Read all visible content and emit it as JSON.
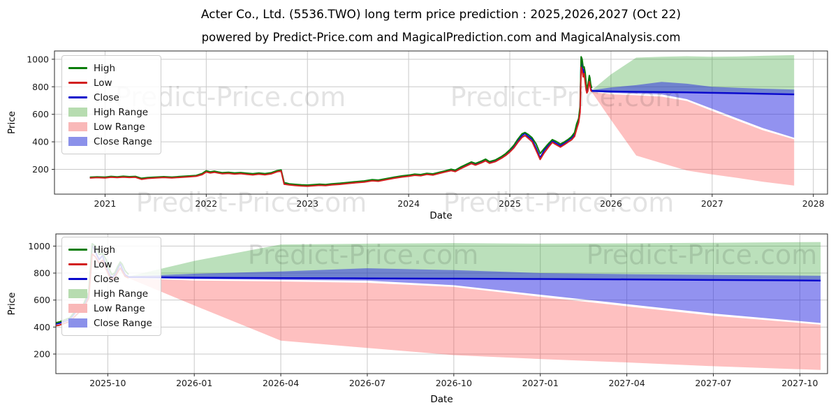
{
  "title": "Acter Co., Ltd. (5536.TWO) long term price prediction : 2025,2026,2027 (Oct 22)",
  "subtitle": "powered by Predict-Price.com and MagicalPrediction.com and MagicalAnalysis.com",
  "watermark_text": "Predict-Price.com",
  "colors": {
    "high_line": "#0a7d0a",
    "low_line": "#d21f1f",
    "close_line": "#0909cc",
    "high_fill": "rgba(44,160,44,0.32)",
    "low_fill": "rgba(253,70,70,0.34)",
    "close_fill": "rgba(38,38,226,0.50)",
    "grid": "#c9c9c9",
    "spine": "#2a2a2a",
    "tick_label": "#1a1a1a",
    "watermark": "rgba(0,0,0,0.11)"
  },
  "legend": [
    {
      "label": "High",
      "color": "#0a7d0a",
      "type": "line"
    },
    {
      "label": "Low",
      "color": "#d21f1f",
      "type": "line"
    },
    {
      "label": "Close",
      "color": "#0909cc",
      "type": "line"
    },
    {
      "label": "High Range",
      "color": "#b7dcb0",
      "type": "patch"
    },
    {
      "label": "Low Range",
      "color": "#f9b8b8",
      "type": "patch"
    },
    {
      "label": "Close Range",
      "color": "#8b91ea",
      "type": "patch"
    }
  ],
  "chart_data": [
    {
      "type": "line",
      "description": "Full history 2020-2025 plus 2-year prediction ranges to Oct 2027",
      "xlabel": "Date",
      "ylabel": "Price",
      "xlim": [
        2020.5,
        2028.14
      ],
      "ylim": [
        20,
        1060
      ],
      "x_tick_values": [
        2021,
        2022,
        2023,
        2024,
        2025,
        2026,
        2027,
        2028
      ],
      "x_tick_labels": [
        "2021",
        "2022",
        "2023",
        "2024",
        "2025",
        "2026",
        "2027",
        "2028"
      ],
      "y_tick_values": [
        200,
        400,
        600,
        800,
        1000
      ],
      "y_tick_labels": [
        "200",
        "400",
        "600",
        "800",
        "1000"
      ],
      "grid": true,
      "legend_position": "upper-left"
    },
    {
      "type": "line",
      "description": "Zoom on prediction window Oct 2025 - Oct 2027",
      "xlabel": "Date",
      "ylabel": "Price",
      "xlim": [
        2025.6,
        2027.83
      ],
      "ylim": [
        55,
        1090
      ],
      "x_tick_values": [
        2025.75,
        2026.0,
        2026.25,
        2026.5,
        2026.75,
        2027.0,
        2027.25,
        2027.5,
        2027.75
      ],
      "x_tick_labels": [
        "2025-10",
        "2026-01",
        "2026-04",
        "2026-07",
        "2026-10",
        "2027-01",
        "2027-04",
        "2027-07",
        "2027-10"
      ],
      "y_tick_values": [
        200,
        400,
        600,
        800,
        1000
      ],
      "y_tick_labels": [
        "200",
        "400",
        "600",
        "800",
        "1000"
      ],
      "grid": true,
      "legend_position": "upper-left"
    }
  ],
  "history": {
    "x_unit": "decimal_year",
    "x": [
      2020.85,
      2020.92,
      2021.0,
      2021.06,
      2021.12,
      2021.18,
      2021.24,
      2021.3,
      2021.36,
      2021.42,
      2021.5,
      2021.58,
      2021.66,
      2021.74,
      2021.82,
      2021.9,
      2021.96,
      2022.0,
      2022.04,
      2022.08,
      2022.12,
      2022.16,
      2022.22,
      2022.28,
      2022.34,
      2022.4,
      2022.46,
      2022.52,
      2022.58,
      2022.64,
      2022.7,
      2022.74,
      2022.77,
      2022.82,
      2022.88,
      2022.94,
      2023.0,
      2023.06,
      2023.12,
      2023.18,
      2023.24,
      2023.32,
      2023.4,
      2023.48,
      2023.56,
      2023.64,
      2023.7,
      2023.78,
      2023.86,
      2023.94,
      2024.0,
      2024.06,
      2024.12,
      2024.18,
      2024.24,
      2024.3,
      2024.36,
      2024.42,
      2024.46,
      2024.52,
      2024.58,
      2024.62,
      2024.66,
      2024.72,
      2024.76,
      2024.8,
      2024.86,
      2024.92,
      2024.96,
      2025.0,
      2025.04,
      2025.08,
      2025.12,
      2025.15,
      2025.18,
      2025.22,
      2025.26,
      2025.3,
      2025.34,
      2025.38,
      2025.42,
      2025.46,
      2025.5,
      2025.54,
      2025.58,
      2025.61,
      2025.64,
      2025.66,
      2025.68,
      2025.695,
      2025.705,
      2025.715,
      2025.725,
      2025.735,
      2025.745,
      2025.755,
      2025.762,
      2025.77,
      2025.778,
      2025.786,
      2025.792,
      2025.8,
      2025.81
    ],
    "high": [
      143,
      146,
      144,
      149,
      146,
      150,
      147,
      149,
      135,
      140,
      144,
      147,
      144,
      148,
      152,
      156,
      170,
      190,
      182,
      187,
      181,
      176,
      179,
      174,
      177,
      172,
      168,
      173,
      169,
      175,
      191,
      196,
      104,
      95,
      91,
      88,
      86,
      89,
      92,
      90,
      95,
      99,
      105,
      111,
      116,
      125,
      122,
      133,
      144,
      153,
      158,
      165,
      162,
      171,
      167,
      178,
      189,
      201,
      194,
      219,
      240,
      254,
      243,
      260,
      274,
      256,
      269,
      294,
      315,
      342,
      375,
      420,
      458,
      468,
      455,
      430,
      385,
      315,
      352,
      386,
      416,
      402,
      384,
      400,
      420,
      438,
      468,
      530,
      570,
      660,
      1018,
      1000,
      938,
      945,
      902,
      824,
      788,
      800,
      846,
      882,
      864,
      818,
      790
    ],
    "low": [
      137,
      140,
      138,
      143,
      140,
      144,
      141,
      143,
      128,
      134,
      138,
      141,
      138,
      142,
      146,
      150,
      162,
      181,
      174,
      179,
      173,
      168,
      171,
      166,
      169,
      164,
      160,
      165,
      161,
      167,
      183,
      188,
      92,
      87,
      83,
      80,
      78,
      81,
      84,
      82,
      87,
      91,
      97,
      103,
      108,
      117,
      114,
      125,
      136,
      145,
      150,
      157,
      154,
      163,
      159,
      170,
      181,
      191,
      184,
      207,
      228,
      242,
      231,
      248,
      262,
      244,
      257,
      282,
      301,
      326,
      356,
      396,
      432,
      446,
      428,
      402,
      338,
      272,
      320,
      360,
      396,
      378,
      362,
      380,
      400,
      414,
      440,
      492,
      540,
      615,
      942,
      918,
      872,
      896,
      830,
      776,
      755,
      766,
      805,
      838,
      812,
      776,
      764
    ],
    "close": [
      140,
      143,
      141,
      146,
      143,
      147,
      144,
      146,
      132,
      137,
      141,
      144,
      141,
      145,
      149,
      153,
      166,
      186,
      178,
      183,
      177,
      172,
      175,
      170,
      173,
      168,
      164,
      169,
      165,
      171,
      187,
      192,
      98,
      91,
      87,
      84,
      82,
      85,
      88,
      86,
      91,
      95,
      101,
      107,
      112,
      121,
      118,
      129,
      140,
      149,
      154,
      161,
      158,
      167,
      163,
      174,
      185,
      196,
      189,
      213,
      234,
      248,
      237,
      254,
      268,
      250,
      263,
      288,
      308,
      334,
      365,
      408,
      444,
      462,
      440,
      417,
      355,
      285,
      338,
      374,
      407,
      390,
      372,
      391,
      412,
      428,
      455,
      520,
      556,
      640,
      1008,
      952,
      900,
      930,
      852,
      790,
      764,
      788,
      826,
      870,
      830,
      788,
      772
    ]
  },
  "forecast": {
    "x_unit": "decimal_year",
    "x": [
      2025.81,
      2026.0,
      2026.25,
      2026.5,
      2026.75,
      2027.0,
      2027.25,
      2027.5,
      2027.81
    ],
    "dates": [
      "2025-10-22",
      "2026-01",
      "2026-04",
      "2026-07",
      "2026-10",
      "2027-01",
      "2027-04",
      "2027-07",
      "2027-10-22"
    ],
    "high_range_top": [
      775,
      890,
      1012,
      1018,
      1022,
      1018,
      1020,
      1025,
      1030
    ],
    "high_range_bottom": [
      772,
      770,
      768,
      766,
      764,
      762,
      759,
      756,
      753
    ],
    "close_range_top": [
      776,
      795,
      812,
      836,
      822,
      800,
      792,
      786,
      780
    ],
    "close": [
      770,
      766,
      763,
      761,
      759,
      756,
      753,
      749,
      745
    ],
    "close_range_bottom": [
      765,
      756,
      750,
      744,
      710,
      640,
      570,
      500,
      430
    ],
    "low_range_top": [
      763,
      745,
      738,
      728,
      697,
      624,
      554,
      484,
      418
    ],
    "low_range_bottom": [
      762,
      560,
      300,
      245,
      192,
      163,
      138,
      110,
      82
    ]
  }
}
